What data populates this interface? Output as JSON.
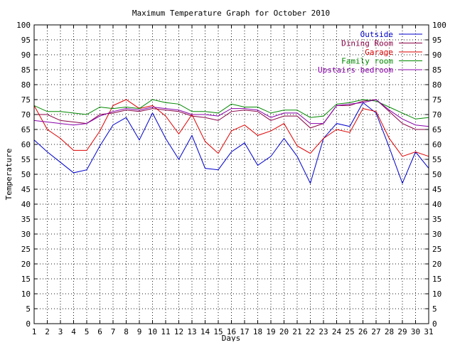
{
  "chart_data": {
    "type": "line",
    "title": "Maximum Temperature Graph for October 2010",
    "xlabel": "Days",
    "ylabel": "Temperature",
    "xlim": [
      1,
      31
    ],
    "ylim": [
      0,
      100
    ],
    "x_ticks": [
      1,
      2,
      3,
      4,
      5,
      6,
      7,
      8,
      9,
      10,
      11,
      12,
      13,
      14,
      15,
      16,
      17,
      18,
      19,
      20,
      21,
      22,
      23,
      24,
      25,
      26,
      27,
      28,
      29,
      30,
      31
    ],
    "y_ticks": [
      0,
      5,
      10,
      15,
      20,
      25,
      30,
      35,
      40,
      45,
      50,
      55,
      60,
      65,
      70,
      75,
      80,
      85,
      90,
      95,
      100
    ],
    "grid": true,
    "legend_position": "top-right",
    "x": [
      1,
      2,
      3,
      4,
      5,
      6,
      7,
      8,
      9,
      10,
      11,
      12,
      13,
      14,
      15,
      16,
      17,
      18,
      19,
      20,
      21,
      22,
      23,
      24,
      25,
      26,
      27,
      28,
      29,
      30,
      31
    ],
    "series": [
      {
        "name": "Outside",
        "color": "#0000cc",
        "values": [
          61.5,
          57.5,
          54,
          50.5,
          51.5,
          59.5,
          66.5,
          69,
          61.5,
          70.5,
          62,
          55,
          63,
          52,
          51.5,
          57.5,
          60.5,
          53,
          56,
          62,
          56,
          47,
          62,
          67,
          66,
          74,
          70.5,
          59,
          47,
          57.5,
          52
        ]
      },
      {
        "name": "Dining Room",
        "color": "#880044",
        "values": [
          70,
          70,
          68,
          67.5,
          67,
          70,
          70.5,
          71.5,
          71,
          72,
          71.5,
          71,
          69.5,
          69,
          68,
          71,
          71.5,
          71,
          68,
          69.5,
          69.5,
          65.5,
          67,
          73,
          73,
          74.5,
          75,
          71,
          67,
          65,
          65
        ]
      },
      {
        "name": "Garage",
        "color": "#dd0000",
        "values": [
          73,
          65,
          62,
          58,
          58,
          64.5,
          73,
          75,
          72,
          73,
          69.5,
          63.5,
          70,
          61,
          57,
          64.5,
          66.5,
          63,
          64.5,
          67,
          59.5,
          57,
          62,
          65,
          64,
          72,
          71,
          62,
          56,
          57.5,
          56
        ]
      },
      {
        "name": "Family room",
        "color": "#008800",
        "values": [
          73,
          71,
          71,
          70.5,
          70,
          72.5,
          72,
          72.5,
          72,
          75,
          74,
          73.5,
          71,
          71,
          70.5,
          73.5,
          72.5,
          72.5,
          70.5,
          71.5,
          71.5,
          69,
          69.5,
          73.5,
          74,
          75,
          74.5,
          72.5,
          70.5,
          68.5,
          69
        ]
      },
      {
        "name": "Upstairs bedroom",
        "color": "#8800aa",
        "values": [
          68,
          67.5,
          67,
          66.5,
          67,
          69.5,
          71,
          72,
          71.5,
          72.5,
          72,
          71.5,
          70,
          70,
          69.5,
          72,
          72,
          71.5,
          69,
          70.5,
          70.5,
          67,
          67,
          73,
          73.5,
          74,
          75,
          71.5,
          68.5,
          66.5,
          66
        ]
      }
    ]
  }
}
